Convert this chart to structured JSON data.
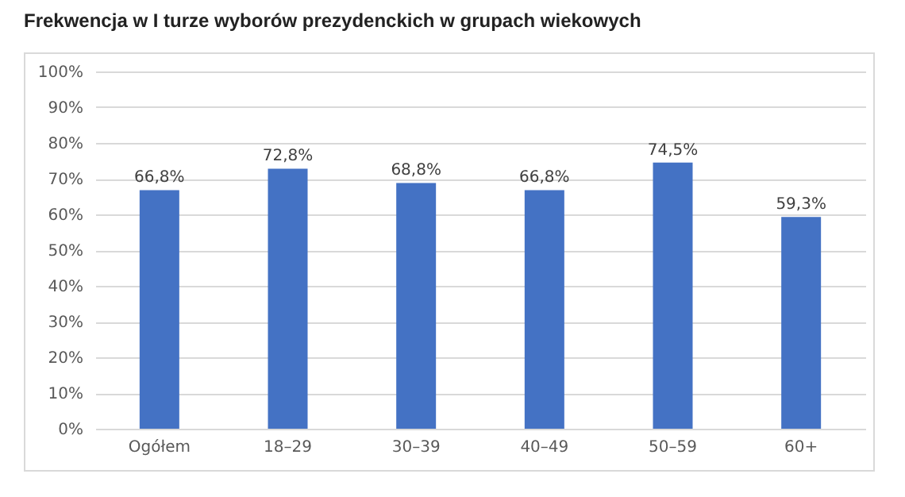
{
  "chart_data": {
    "type": "bar",
    "title": "Frekwencja w I turze wyborów prezydenckich w grupach wiekowych",
    "categories": [
      "Ogółem",
      "18–29",
      "30–39",
      "40–49",
      "50–59",
      "60+"
    ],
    "values": [
      66.8,
      72.8,
      68.8,
      66.8,
      74.5,
      59.3
    ],
    "value_labels": [
      "66,8%",
      "72,8%",
      "68,8%",
      "66,8%",
      "74,5%",
      "59,3%"
    ],
    "color": "#4472c4",
    "ylim": [
      0,
      100
    ],
    "yticks": [
      {
        "value": 0,
        "label": "0%"
      },
      {
        "value": 10,
        "label": "10%"
      },
      {
        "value": 20,
        "label": "20%"
      },
      {
        "value": 30,
        "label": "30%"
      },
      {
        "value": 40,
        "label": "40%"
      },
      {
        "value": 50,
        "label": "50%"
      },
      {
        "value": 60,
        "label": "60%"
      },
      {
        "value": 70,
        "label": "70%"
      },
      {
        "value": 80,
        "label": "80%"
      },
      {
        "value": 90,
        "label": "90%"
      },
      {
        "value": 100,
        "label": "100%"
      }
    ],
    "grid": "y"
  }
}
